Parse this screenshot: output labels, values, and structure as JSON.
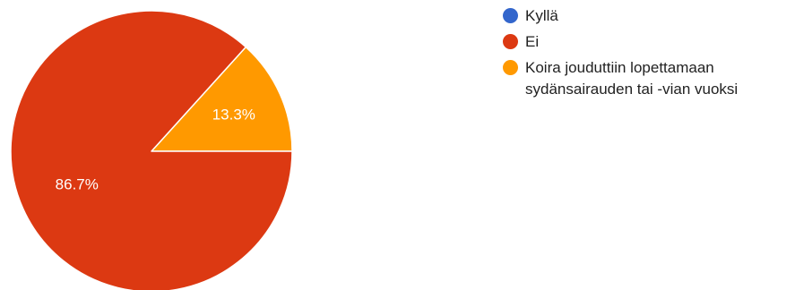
{
  "chart_data": {
    "type": "pie",
    "categories": [
      "Kyllä",
      "Ei",
      "Koira jouduttiin lopettamaan sydänsairauden tai -vian vuoksi"
    ],
    "values": [
      0,
      86.7,
      13.3
    ],
    "value_labels": [
      "",
      "86.7%",
      "13.3%"
    ],
    "colors": [
      "#3366cc",
      "#dc3912",
      "#ff9900"
    ],
    "legend_position": "right"
  },
  "legend": [
    {
      "label": "Kyllä",
      "color": "#3366cc"
    },
    {
      "label": "Ei",
      "color": "#dc3912"
    },
    {
      "label": "Koira jouduttiin lopettamaan sydänsairauden tai -vian vuoksi",
      "color": "#ff9900"
    }
  ]
}
